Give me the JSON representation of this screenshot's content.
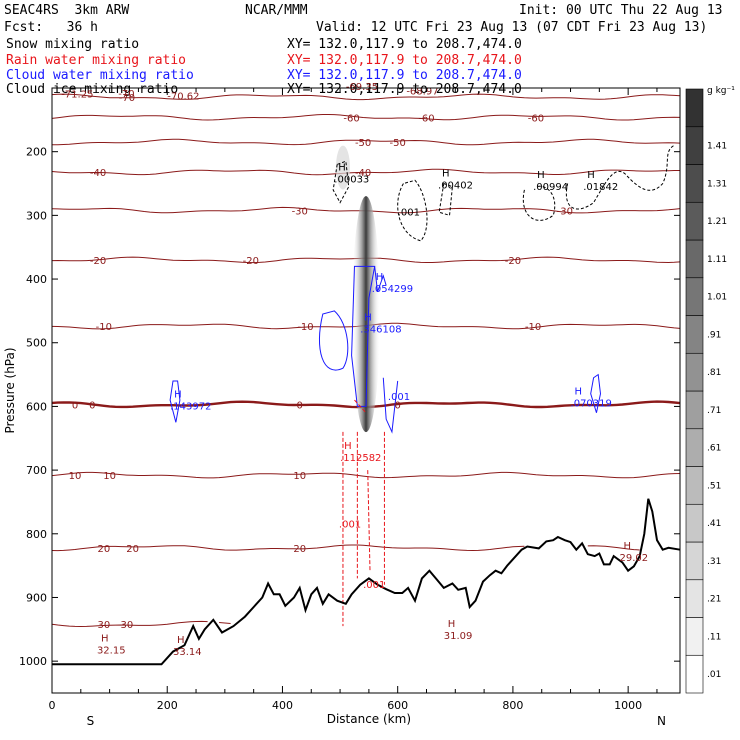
{
  "header": {
    "project": "SEAC4RS",
    "model": "3km ARW",
    "center": "NCAR/MMM",
    "init": "Init: 00 UTC Thu 22 Aug 13",
    "fcst_label": "Fcst:",
    "fcst_value": "36 h",
    "valid": "Valid: 12 UTC Fri 23 Aug 13 (07 CDT Fri 23 Aug 13)",
    "fields": [
      {
        "label": "Snow mixing ratio",
        "color": "#000000",
        "xy": "XY= 132.0,117.9 to 208.7,474.0"
      },
      {
        "label": "Rain water mixing ratio",
        "color": "#e8151b",
        "xy": "XY= 132.0,117.9 to 208.7,474.0"
      },
      {
        "label": "Cloud water mixing ratio",
        "color": "#1a1aff",
        "xy": "XY= 132.0,117.9 to 208.7,474.0"
      },
      {
        "label": "Cloud ice mixing ratio",
        "color": "#000000",
        "xy": "XY= 132.0,117.9 to 208.7,474.0"
      }
    ]
  },
  "chart_data": {
    "type": "cross-section",
    "xlabel": "Distance (km)",
    "ylabel": "Pressure (hPa)",
    "xlim": [
      0,
      1090
    ],
    "ylim": [
      1050,
      100
    ],
    "xticks": [
      0,
      200,
      400,
      600,
      800,
      1000
    ],
    "yticks": [
      200,
      300,
      400,
      500,
      600,
      700,
      800,
      900,
      1000
    ],
    "x_end_labels": {
      "left": "S",
      "right": "N"
    },
    "colorbar": {
      "unit": "g kg⁻¹",
      "levels": [
        ".01",
        ".11",
        ".21",
        ".31",
        ".41",
        ".51",
        ".61",
        ".71",
        ".81",
        ".91",
        "1.01",
        "1.11",
        "1.21",
        "1.31",
        "1.41"
      ]
    },
    "temperature_contours": {
      "color": "#8b1a1a",
      "levels": [
        {
          "value": 30,
          "p": 942,
          "label_x": [
            90,
            130
          ]
        },
        {
          "value": 20,
          "p": 822,
          "label_x": [
            90,
            140,
            430
          ]
        },
        {
          "value": 10,
          "p": 708,
          "label_x": [
            40,
            100,
            430
          ]
        },
        {
          "value": 0,
          "p": 597,
          "label_x": [
            40,
            70,
            430,
            600
          ]
        },
        {
          "value": -10,
          "p": 474,
          "label_x": [
            90,
            440,
            835
          ]
        },
        {
          "value": -20,
          "p": 370,
          "label_x": [
            80,
            345,
            800
          ]
        },
        {
          "value": -30,
          "p": 292,
          "label_x": [
            430,
            890
          ]
        },
        {
          "value": -40,
          "p": 232,
          "label_x": [
            80,
            540
          ]
        },
        {
          "value": -50,
          "p": 185,
          "label_x": [
            540,
            600
          ]
        },
        {
          "value": -60,
          "p": 146,
          "label_x": [
            520,
            650,
            840
          ]
        },
        {
          "value": -70,
          "p": 114,
          "label_x": [
            130
          ]
        }
      ]
    },
    "terrain": [
      [
        0,
        1005
      ],
      [
        100,
        1005
      ],
      [
        190,
        1005
      ],
      [
        210,
        985
      ],
      [
        230,
        975
      ],
      [
        245,
        945
      ],
      [
        255,
        965
      ],
      [
        265,
        950
      ],
      [
        280,
        935
      ],
      [
        295,
        955
      ],
      [
        315,
        945
      ],
      [
        335,
        930
      ],
      [
        350,
        915
      ],
      [
        365,
        900
      ],
      [
        375,
        878
      ],
      [
        385,
        895
      ],
      [
        395,
        895
      ],
      [
        405,
        913
      ],
      [
        420,
        900
      ],
      [
        430,
        885
      ],
      [
        440,
        920
      ],
      [
        450,
        895
      ],
      [
        460,
        885
      ],
      [
        470,
        910
      ],
      [
        480,
        895
      ],
      [
        495,
        905
      ],
      [
        510,
        910
      ],
      [
        520,
        895
      ],
      [
        535,
        880
      ],
      [
        550,
        870
      ],
      [
        565,
        880
      ],
      [
        580,
        887
      ],
      [
        595,
        893
      ],
      [
        608,
        893
      ],
      [
        618,
        885
      ],
      [
        630,
        905
      ],
      [
        642,
        870
      ],
      [
        655,
        858
      ],
      [
        668,
        872
      ],
      [
        680,
        885
      ],
      [
        695,
        878
      ],
      [
        705,
        888
      ],
      [
        718,
        885
      ],
      [
        725,
        915
      ],
      [
        735,
        905
      ],
      [
        748,
        875
      ],
      [
        760,
        865
      ],
      [
        770,
        858
      ],
      [
        780,
        862
      ],
      [
        790,
        850
      ],
      [
        800,
        840
      ],
      [
        815,
        825
      ],
      [
        825,
        820
      ],
      [
        845,
        823
      ],
      [
        858,
        812
      ],
      [
        870,
        810
      ],
      [
        878,
        805
      ],
      [
        890,
        810
      ],
      [
        900,
        813
      ],
      [
        910,
        825
      ],
      [
        920,
        815
      ],
      [
        930,
        832
      ],
      [
        942,
        835
      ],
      [
        950,
        831
      ],
      [
        958,
        848
      ],
      [
        968,
        848
      ],
      [
        975,
        835
      ],
      [
        990,
        845
      ],
      [
        1000,
        858
      ],
      [
        1010,
        851
      ],
      [
        1020,
        835
      ],
      [
        1028,
        800
      ],
      [
        1035,
        745
      ],
      [
        1042,
        765
      ],
      [
        1050,
        810
      ],
      [
        1060,
        825
      ],
      [
        1070,
        822
      ],
      [
        1090,
        825
      ]
    ],
    "extrema_labels": [
      {
        "text": "H",
        "value": ".00033",
        "x": 490,
        "p": 248,
        "color": "#000000"
      },
      {
        "text": "H",
        "value": ".00402",
        "x": 670,
        "p": 258,
        "color": "#000000"
      },
      {
        "text": "H",
        "value": ".00994",
        "x": 835,
        "p": 260,
        "color": "#000000"
      },
      {
        "text": "H",
        "value": ".01842",
        "x": 922,
        "p": 260,
        "color": "#000000"
      },
      {
        "text": "H",
        "value": ".054299",
        "x": 555,
        "p": 420,
        "color": "#1a1aff"
      },
      {
        "text": "H",
        "value": ".346108",
        "x": 535,
        "p": 484,
        "color": "#1a1aff"
      },
      {
        "text": "H",
        "value": ".143972",
        "x": 205,
        "p": 605,
        "color": "#1a1aff"
      },
      {
        "text": "H",
        "value": ".070319",
        "x": 900,
        "p": 600,
        "color": "#1a1aff"
      },
      {
        "text": "H",
        "value": ".112582",
        "x": 500,
        "p": 686,
        "color": "#e8151b"
      },
      {
        "text": "H",
        "value": "32.15",
        "x": 78,
        "p": 988,
        "color": "#8b1a1a"
      },
      {
        "text": "H",
        "value": "33.14",
        "x": 210,
        "p": 990,
        "color": "#8b1a1a"
      },
      {
        "text": "H",
        "value": "31.09",
        "x": 680,
        "p": 965,
        "color": "#8b1a1a"
      },
      {
        "text": "H",
        "value": "29.02",
        "x": 985,
        "p": 843,
        "color": "#8b1a1a"
      }
    ],
    "top_labels": [
      {
        "text": "-71.25",
        "x": 16,
        "p": 115
      },
      {
        "text": "-70",
        "x": 115,
        "p": 114
      },
      {
        "text": "-70.62",
        "x": 200,
        "p": 118
      },
      {
        "text": "-69.35",
        "x": 510,
        "p": 103
      },
      {
        "text": "-68.97",
        "x": 615,
        "p": 110
      }
    ],
    "contour_value_labels": [
      {
        "text": ".001",
        "x": 600,
        "p": 300,
        "color": "#000000"
      },
      {
        "text": ".001",
        "x": 583,
        "p": 590,
        "color": "#1a1aff"
      },
      {
        "text": ".001",
        "x": 498,
        "p": 790,
        "color": "#e8151b"
      },
      {
        "text": ".001",
        "x": 540,
        "p": 885,
        "color": "#e8151b"
      }
    ]
  }
}
